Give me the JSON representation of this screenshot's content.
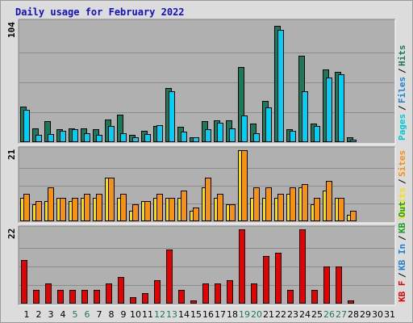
{
  "title": "Daily usage for February 2022",
  "colors": {
    "background": "#dcdcdc",
    "panel": "#b0b0b0",
    "hits": "#1a7a5c",
    "files": "#00d0f8",
    "pages": "#00c8d8",
    "visits": "#f8e000",
    "sites": "#f89010",
    "kbin": "#1e82d2",
    "kbout": "#18a018",
    "kbf": "#e80000",
    "weekend_label": "#1a7a5c",
    "weekday_label": "#000000"
  },
  "chart_data": [
    {
      "type": "bar",
      "title": "Daily usage for February 2022",
      "ymax_label": "104",
      "ylim": [
        0,
        104
      ],
      "grid": true,
      "legend": "right-vertical",
      "legend_items": [
        {
          "text": "Pages",
          "color": "#00c8d8"
        },
        {
          "text": "Files",
          "color": "#1e82d2"
        },
        {
          "text": "Hits",
          "color": "#1a7a5c"
        }
      ],
      "categories": [
        "1",
        "2",
        "3",
        "4",
        "5",
        "6",
        "7",
        "8",
        "9",
        "10",
        "11",
        "12",
        "13",
        "14",
        "15",
        "16",
        "17",
        "18",
        "19",
        "20",
        "21",
        "22",
        "23",
        "24",
        "25",
        "26",
        "27",
        "28",
        "29",
        "30",
        "31"
      ],
      "series": [
        {
          "name": "Hits",
          "color": "#1a7a5c",
          "values": [
            31,
            12,
            18,
            11,
            12,
            12,
            11,
            20,
            24,
            6,
            10,
            14,
            47,
            13,
            4,
            18,
            19,
            19,
            65,
            16,
            36,
            101,
            11,
            75,
            16,
            63,
            61,
            4,
            0,
            0,
            0
          ]
        },
        {
          "name": "Files",
          "color": "#00d0f8",
          "values": [
            28,
            6,
            7,
            10,
            11,
            8,
            6,
            14,
            8,
            4,
            7,
            15,
            44,
            9,
            4,
            11,
            17,
            12,
            23,
            8,
            30,
            98,
            10,
            44,
            14,
            56,
            59,
            2,
            0,
            0,
            0
          ]
        }
      ]
    },
    {
      "type": "bar",
      "ymax_label": "21",
      "ylim": [
        0,
        21
      ],
      "grid": true,
      "legend": "right-vertical",
      "legend_items": [
        {
          "text": "Visits",
          "color": "#f8e000"
        },
        {
          "text": "Sites",
          "color": "#f89010"
        }
      ],
      "categories": [
        "1",
        "2",
        "3",
        "4",
        "5",
        "6",
        "7",
        "8",
        "9",
        "10",
        "11",
        "12",
        "13",
        "14",
        "15",
        "16",
        "17",
        "18",
        "19",
        "20",
        "21",
        "22",
        "23",
        "24",
        "25",
        "26",
        "27",
        "28",
        "29",
        "30",
        "31"
      ],
      "series": [
        {
          "name": "Visits",
          "color": "#f8e000",
          "values": [
            7,
            5,
            6,
            7,
            6,
            7,
            7,
            13,
            7,
            3,
            6,
            7,
            7,
            7,
            3,
            10,
            7,
            5,
            21,
            7,
            7,
            7,
            8,
            10,
            5,
            9,
            7,
            2,
            0,
            0,
            0
          ]
        },
        {
          "name": "Sites",
          "color": "#f89010",
          "values": [
            8,
            6,
            10,
            7,
            7,
            8,
            8,
            13,
            8,
            5,
            6,
            8,
            7,
            9,
            4,
            13,
            8,
            5,
            21,
            10,
            10,
            8,
            10,
            11,
            7,
            12,
            7,
            3,
            0,
            0,
            0
          ]
        }
      ]
    },
    {
      "type": "bar",
      "ymax_label": "22",
      "ylim": [
        0,
        22
      ],
      "grid": true,
      "legend": "right-vertical",
      "legend_items": [
        {
          "text": "KB F",
          "color": "#e80000"
        },
        {
          "text": "KB In",
          "color": "#1e82d2"
        },
        {
          "text": "KB Out",
          "color": "#18a018"
        }
      ],
      "categories": [
        "1",
        "2",
        "3",
        "4",
        "5",
        "6",
        "7",
        "8",
        "9",
        "10",
        "11",
        "12",
        "13",
        "14",
        "15",
        "16",
        "17",
        "18",
        "19",
        "20",
        "21",
        "22",
        "23",
        "24",
        "25",
        "26",
        "27",
        "28",
        "29",
        "30",
        "31"
      ],
      "series": [
        {
          "name": "KB F",
          "color": "#e80000",
          "values": [
            13,
            4,
            6,
            4,
            4,
            4,
            4,
            6,
            8,
            2,
            3,
            7,
            16,
            4,
            1,
            6,
            6,
            7,
            22,
            6,
            14,
            15,
            4,
            22,
            4,
            11,
            11,
            1,
            0,
            0,
            0
          ]
        }
      ]
    }
  ],
  "x_labels": [
    "1",
    "2",
    "3",
    "4",
    "5",
    "6",
    "7",
    "8",
    "9",
    "10",
    "11",
    "12",
    "13",
    "14",
    "15",
    "16",
    "17",
    "18",
    "19",
    "20",
    "21",
    "22",
    "23",
    "24",
    "25",
    "26",
    "27",
    "28",
    "29",
    "30",
    "31"
  ],
  "weekend_days": [
    "5",
    "6",
    "12",
    "13",
    "19",
    "20",
    "26",
    "27"
  ]
}
